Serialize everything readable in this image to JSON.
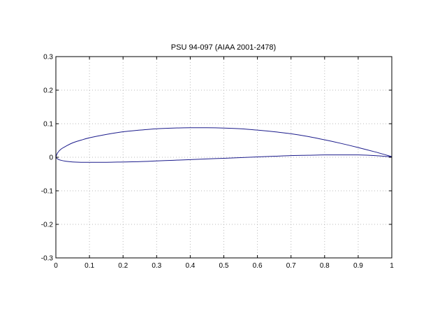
{
  "chart_data": {
    "type": "line",
    "title": "PSU 94-097 (AIAA 2001-2478)",
    "xlabel": "",
    "ylabel": "",
    "xlim": [
      0,
      1
    ],
    "ylim": [
      -0.3,
      0.3
    ],
    "grid": true,
    "line_color": "#1c1c8c",
    "xticks": [
      "0",
      "0.1",
      "0.2",
      "0.3",
      "0.4",
      "0.5",
      "0.6",
      "0.7",
      "0.8",
      "0.9",
      "1"
    ],
    "yticks": [
      "0.3",
      "0.2",
      "0.1",
      "0",
      "-0.1",
      "-0.2",
      "-0.3"
    ],
    "series": [
      {
        "x": [
          1.0,
          0.95,
          0.9,
          0.85,
          0.8,
          0.75,
          0.7,
          0.65,
          0.6,
          0.55,
          0.5,
          0.45,
          0.4,
          0.35,
          0.3,
          0.25,
          0.2,
          0.15,
          0.1,
          0.075,
          0.05,
          0.03,
          0.015,
          0.005,
          0.0
        ],
        "y": [
          0.002,
          0.016,
          0.029,
          0.041,
          0.052,
          0.062,
          0.07,
          0.076,
          0.081,
          0.085,
          0.087,
          0.088,
          0.088,
          0.087,
          0.085,
          0.081,
          0.076,
          0.068,
          0.058,
          0.051,
          0.043,
          0.033,
          0.024,
          0.013,
          0.0
        ]
      },
      {
        "x": [
          0.0,
          0.005,
          0.015,
          0.03,
          0.05,
          0.075,
          0.1,
          0.15,
          0.2,
          0.25,
          0.3,
          0.35,
          0.4,
          0.45,
          0.5,
          0.55,
          0.6,
          0.65,
          0.7,
          0.75,
          0.8,
          0.85,
          0.9,
          0.95,
          1.0
        ],
        "y": [
          0.0,
          -0.005,
          -0.009,
          -0.012,
          -0.014,
          -0.015,
          -0.015,
          -0.015,
          -0.014,
          -0.013,
          -0.011,
          -0.009,
          -0.007,
          -0.005,
          -0.003,
          -0.001,
          0.001,
          0.003,
          0.005,
          0.006,
          0.007,
          0.007,
          0.007,
          0.005,
          0.001
        ]
      }
    ]
  }
}
